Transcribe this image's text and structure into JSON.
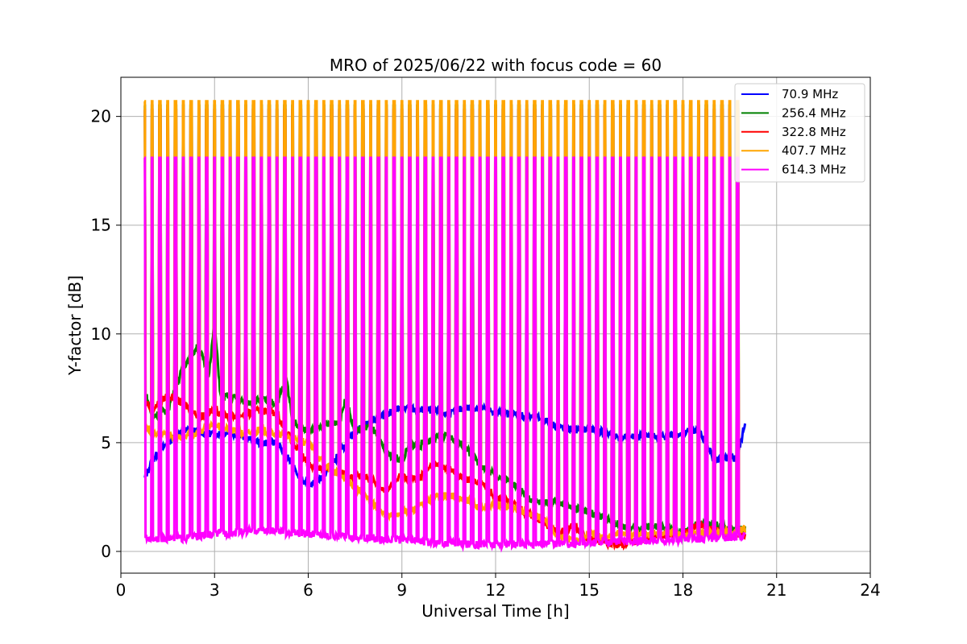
{
  "chart_data": {
    "type": "line",
    "title": "MRO of 2025/06/22 with focus code = 60",
    "xlabel": "Universal Time [h]",
    "ylabel": "Y-factor [dB]",
    "xlim": [
      0,
      24
    ],
    "ylim": [
      -1,
      21.8
    ],
    "xticks": [
      0,
      3,
      6,
      9,
      12,
      15,
      18,
      21,
      24
    ],
    "yticks": [
      0,
      5,
      10,
      15,
      20
    ],
    "grid": true,
    "legend_position": "upper right",
    "pulse_interval_h": 0.25,
    "pulse_range_h": [
      0.75,
      19.75
    ],
    "series": [
      {
        "name": " 70.9 MHz",
        "color": "#0000ff",
        "pulse_peak": 0,
        "points": [
          [
            0.75,
            3.3
          ],
          [
            1.0,
            4.2
          ],
          [
            1.5,
            5.0
          ],
          [
            2.0,
            5.6
          ],
          [
            2.5,
            5.5
          ],
          [
            3.0,
            5.4
          ],
          [
            3.5,
            5.5
          ],
          [
            4.0,
            5.2
          ],
          [
            4.5,
            5.0
          ],
          [
            5.0,
            5.0
          ],
          [
            5.5,
            4.0
          ],
          [
            5.7,
            3.5
          ],
          [
            6.0,
            3.0
          ],
          [
            6.5,
            3.5
          ],
          [
            7.0,
            4.5
          ],
          [
            7.5,
            5.5
          ],
          [
            8.0,
            6.0
          ],
          [
            8.5,
            6.3
          ],
          [
            9.0,
            6.6
          ],
          [
            9.5,
            6.5
          ],
          [
            10.0,
            6.5
          ],
          [
            10.5,
            6.3
          ],
          [
            11.0,
            6.6
          ],
          [
            11.5,
            6.6
          ],
          [
            12.0,
            6.4
          ],
          [
            12.5,
            6.3
          ],
          [
            13.0,
            6.2
          ],
          [
            13.5,
            6.1
          ],
          [
            14.0,
            5.7
          ],
          [
            14.5,
            5.6
          ],
          [
            15.0,
            5.6
          ],
          [
            15.5,
            5.5
          ],
          [
            16.0,
            5.2
          ],
          [
            16.5,
            5.3
          ],
          [
            17.0,
            5.3
          ],
          [
            17.5,
            5.3
          ],
          [
            18.0,
            5.4
          ],
          [
            18.5,
            5.6
          ],
          [
            19.0,
            4.2
          ],
          [
            19.75,
            4.3
          ],
          [
            20.0,
            6.0
          ]
        ]
      },
      {
        "name": "256.4 MHz",
        "color": "#008000",
        "pulse_peak": 20.5,
        "points": [
          [
            0.75,
            7.5
          ],
          [
            1.0,
            6.2
          ],
          [
            1.5,
            6.5
          ],
          [
            2.0,
            8.5
          ],
          [
            2.5,
            9.5
          ],
          [
            2.8,
            8.0
          ],
          [
            3.0,
            10.5
          ],
          [
            3.2,
            7.0
          ],
          [
            3.5,
            7.2
          ],
          [
            4.0,
            6.8
          ],
          [
            4.5,
            7.0
          ],
          [
            5.0,
            6.8
          ],
          [
            5.3,
            8.0
          ],
          [
            5.5,
            6.0
          ],
          [
            6.0,
            5.5
          ],
          [
            6.5,
            5.8
          ],
          [
            7.0,
            6.0
          ],
          [
            7.2,
            7.0
          ],
          [
            7.5,
            5.5
          ],
          [
            8.0,
            5.8
          ],
          [
            8.5,
            4.5
          ],
          [
            9.0,
            4.2
          ],
          [
            9.3,
            5.0
          ],
          [
            9.5,
            4.8
          ],
          [
            10.0,
            5.2
          ],
          [
            10.5,
            5.3
          ],
          [
            11.0,
            4.8
          ],
          [
            11.5,
            4.0
          ],
          [
            12.0,
            3.5
          ],
          [
            12.5,
            3.2
          ],
          [
            13.0,
            2.5
          ],
          [
            13.5,
            2.2
          ],
          [
            14.0,
            2.3
          ],
          [
            14.5,
            2.0
          ],
          [
            15.0,
            1.8
          ],
          [
            15.5,
            1.5
          ],
          [
            16.0,
            1.2
          ],
          [
            16.5,
            1.0
          ],
          [
            17.0,
            1.2
          ],
          [
            17.5,
            1.0
          ],
          [
            18.0,
            0.8
          ],
          [
            18.5,
            1.3
          ],
          [
            19.0,
            1.2
          ],
          [
            19.5,
            1.1
          ],
          [
            20.0,
            1.0
          ]
        ]
      },
      {
        "name": "322.8 MHz",
        "color": "#ff0000",
        "pulse_peak": 20.3,
        "points": [
          [
            0.75,
            7.0
          ],
          [
            1.0,
            6.5
          ],
          [
            1.5,
            7.2
          ],
          [
            2.0,
            6.8
          ],
          [
            2.5,
            6.2
          ],
          [
            3.0,
            6.5
          ],
          [
            3.5,
            6.2
          ],
          [
            4.0,
            6.3
          ],
          [
            4.5,
            6.5
          ],
          [
            5.0,
            6.3
          ],
          [
            5.5,
            5.0
          ],
          [
            6.0,
            4.0
          ],
          [
            6.5,
            3.8
          ],
          [
            7.0,
            3.6
          ],
          [
            7.5,
            3.5
          ],
          [
            8.0,
            3.3
          ],
          [
            8.5,
            2.8
          ],
          [
            9.0,
            3.5
          ],
          [
            9.5,
            3.3
          ],
          [
            10.0,
            4.0
          ],
          [
            10.5,
            3.8
          ],
          [
            11.0,
            3.3
          ],
          [
            11.5,
            3.2
          ],
          [
            12.0,
            2.5
          ],
          [
            12.5,
            2.2
          ],
          [
            13.0,
            1.8
          ],
          [
            13.5,
            1.4
          ],
          [
            14.0,
            0.8
          ],
          [
            14.5,
            1.2
          ],
          [
            15.0,
            0.6
          ],
          [
            15.5,
            0.4
          ],
          [
            16.0,
            0.3
          ],
          [
            16.5,
            0.5
          ],
          [
            17.0,
            0.6
          ],
          [
            17.5,
            0.8
          ],
          [
            18.0,
            0.8
          ],
          [
            18.5,
            1.2
          ],
          [
            19.0,
            1.0
          ],
          [
            19.5,
            0.8
          ],
          [
            20.0,
            0.8
          ]
        ]
      },
      {
        "name": "407.7 MHz",
        "color": "#ffa500",
        "pulse_peak": 20.7,
        "points": [
          [
            0.75,
            5.8
          ],
          [
            1.0,
            5.5
          ],
          [
            1.5,
            5.3
          ],
          [
            2.0,
            5.2
          ],
          [
            2.5,
            5.5
          ],
          [
            3.0,
            5.8
          ],
          [
            3.5,
            5.6
          ],
          [
            4.0,
            5.4
          ],
          [
            4.5,
            5.6
          ],
          [
            5.0,
            5.4
          ],
          [
            5.5,
            5.2
          ],
          [
            6.0,
            5.0
          ],
          [
            6.5,
            4.0
          ],
          [
            7.0,
            3.5
          ],
          [
            7.5,
            3.0
          ],
          [
            8.0,
            2.3
          ],
          [
            8.5,
            1.6
          ],
          [
            9.0,
            1.8
          ],
          [
            9.5,
            2.0
          ],
          [
            10.0,
            2.5
          ],
          [
            10.5,
            2.6
          ],
          [
            11.0,
            2.4
          ],
          [
            11.5,
            2.0
          ],
          [
            12.0,
            2.2
          ],
          [
            12.5,
            2.0
          ],
          [
            13.0,
            1.8
          ],
          [
            13.5,
            1.5
          ],
          [
            14.0,
            0.7
          ],
          [
            14.5,
            0.5
          ],
          [
            15.0,
            0.8
          ],
          [
            15.5,
            0.7
          ],
          [
            16.0,
            0.8
          ],
          [
            16.5,
            0.8
          ],
          [
            17.0,
            0.8
          ],
          [
            17.5,
            0.9
          ],
          [
            18.0,
            0.7
          ],
          [
            18.5,
            0.9
          ],
          [
            19.0,
            0.8
          ],
          [
            19.5,
            0.9
          ],
          [
            20.0,
            1.0
          ]
        ]
      },
      {
        "name": "614.3 MHz",
        "color": "#ff00ff",
        "pulse_peak": 18.1,
        "points": [
          [
            0.75,
            0.6
          ],
          [
            1.0,
            0.6
          ],
          [
            2.0,
            0.6
          ],
          [
            3.0,
            0.8
          ],
          [
            4.0,
            0.9
          ],
          [
            4.5,
            1.0
          ],
          [
            5.0,
            0.9
          ],
          [
            6.0,
            0.8
          ],
          [
            7.0,
            0.7
          ],
          [
            8.0,
            0.6
          ],
          [
            9.0,
            0.5
          ],
          [
            10.0,
            0.4
          ],
          [
            11.0,
            0.35
          ],
          [
            12.0,
            0.3
          ],
          [
            13.0,
            0.35
          ],
          [
            14.0,
            0.35
          ],
          [
            15.0,
            0.4
          ],
          [
            16.0,
            0.45
          ],
          [
            17.0,
            0.5
          ],
          [
            18.0,
            0.55
          ],
          [
            19.0,
            0.6
          ],
          [
            20.0,
            0.7
          ]
        ]
      }
    ]
  }
}
